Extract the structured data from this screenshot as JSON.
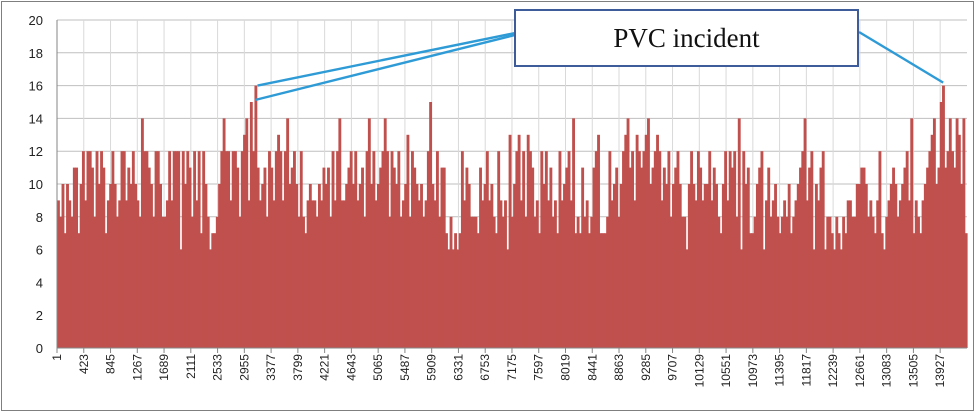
{
  "chart_data": {
    "type": "bar",
    "title": "",
    "xlabel": "",
    "ylabel": "",
    "ylim": [
      0,
      20
    ],
    "yticks": [
      0,
      2,
      4,
      6,
      8,
      10,
      12,
      14,
      16,
      18,
      20
    ],
    "xlim": [
      1,
      14350
    ],
    "xticks": [
      1,
      423,
      845,
      1267,
      1689,
      2111,
      2533,
      2955,
      3377,
      3799,
      4221,
      4643,
      5065,
      5487,
      5909,
      6331,
      6753,
      7175,
      7597,
      8019,
      8441,
      8863,
      9285,
      9707,
      10129,
      10551,
      10973,
      11395,
      11817,
      12239,
      12661,
      13083,
      13505,
      13927
    ],
    "bar_color": "#c0504d",
    "grid": true,
    "values": [
      9,
      8,
      10,
      7,
      10,
      9,
      8,
      11,
      11,
      7,
      10,
      12,
      9,
      12,
      12,
      11,
      8,
      12,
      10,
      12,
      11,
      7,
      9,
      10,
      12,
      10,
      8,
      9,
      12,
      12,
      9,
      11,
      10,
      12,
      10,
      9,
      8,
      14,
      12,
      12,
      11,
      10,
      8,
      12,
      12,
      10,
      8,
      8,
      9,
      12,
      9,
      12,
      12,
      12,
      6,
      12,
      10,
      12,
      11,
      8,
      12,
      9,
      12,
      7,
      12,
      10,
      8,
      6,
      7,
      7,
      8,
      10,
      12,
      14,
      12,
      12,
      9,
      12,
      12,
      11,
      8,
      12,
      13,
      14,
      9,
      15,
      12,
      16,
      11,
      9,
      10,
      11,
      8,
      12,
      11,
      9,
      12,
      13,
      12,
      9,
      12,
      14,
      10,
      11,
      12,
      10,
      8,
      12,
      8,
      7,
      9,
      10,
      9,
      9,
      8,
      10,
      9,
      11,
      10,
      11,
      8,
      12,
      9,
      12,
      14,
      9,
      9,
      10,
      11,
      12,
      10,
      12,
      9,
      10,
      11,
      8,
      12,
      14,
      10,
      12,
      9,
      10,
      11,
      12,
      14,
      12,
      8,
      12,
      11,
      10,
      12,
      8,
      9,
      10,
      13,
      8,
      12,
      11,
      10,
      9,
      10,
      8,
      9,
      12,
      15,
      10,
      9,
      12,
      8,
      11,
      11,
      7,
      6,
      8,
      6,
      7,
      6,
      7,
      12,
      9,
      11,
      10,
      8,
      8,
      8,
      7,
      11,
      9,
      10,
      12,
      9,
      10,
      8,
      7,
      12,
      9,
      8,
      9,
      6,
      13,
      8,
      10,
      12,
      13,
      9,
      12,
      8,
      13,
      12,
      11,
      8,
      9,
      7,
      12,
      10,
      12,
      9,
      11,
      8,
      9,
      7,
      12,
      9,
      10,
      11,
      12,
      9,
      14,
      7,
      8,
      7,
      11,
      8,
      9,
      7,
      8,
      11,
      12,
      13,
      7,
      7,
      7,
      8,
      12,
      9,
      10,
      11,
      8,
      10,
      12,
      13,
      14,
      11,
      12,
      9,
      13,
      12,
      11,
      12,
      13,
      14,
      10,
      11,
      12,
      13,
      12,
      9,
      11,
      10,
      12,
      8,
      10,
      11,
      12,
      10,
      8,
      8,
      6,
      10,
      12,
      10,
      9,
      12,
      11,
      9,
      10,
      10,
      12,
      9,
      11,
      10,
      8,
      7,
      10,
      12,
      9,
      12,
      11,
      12,
      8,
      14,
      6,
      12,
      10,
      11,
      7,
      7,
      8,
      10,
      11,
      12,
      6,
      9,
      11,
      8,
      9,
      10,
      8,
      7,
      8,
      9,
      8,
      10,
      7,
      8,
      9,
      10,
      11,
      12,
      14,
      9,
      11,
      12,
      6,
      10,
      9,
      11,
      12,
      6,
      8,
      8,
      7,
      6,
      8,
      7,
      6,
      8,
      7,
      9,
      9,
      8,
      8,
      10,
      10,
      11,
      11,
      10,
      8,
      9,
      8,
      7,
      9,
      12,
      7,
      6,
      8,
      9,
      10,
      11,
      10,
      8,
      9,
      10,
      11,
      12,
      9,
      14,
      7,
      9,
      8,
      7,
      9,
      10,
      11,
      12,
      13,
      14,
      10,
      11,
      15,
      16,
      11,
      12,
      14,
      12,
      11,
      14,
      13,
      10,
      14,
      7
    ]
  },
  "annotation": {
    "label": "PVC incident"
  }
}
